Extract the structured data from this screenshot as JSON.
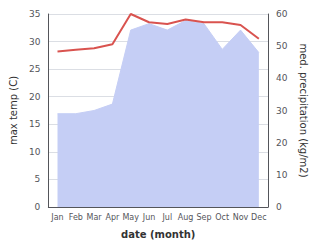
{
  "chart_data": {
    "type": "line",
    "categories": [
      "Jan",
      "Feb",
      "Mar",
      "Apr",
      "May",
      "Jun",
      "Jul",
      "Aug",
      "Sep",
      "Oct",
      "Nov",
      "Dec"
    ],
    "xlabel": "date (month)",
    "ylabel": "max temp (C)",
    "y2label": "med. precipitation (kg/m2)",
    "series": [
      {
        "type": "area",
        "axis": "y2",
        "color": "#c5cef5",
        "values": [
          29,
          29,
          30,
          32,
          55,
          57,
          55,
          58,
          57,
          49,
          55,
          48
        ]
      },
      {
        "type": "line",
        "color": "#d9534f",
        "values": [
          28.2,
          28.5,
          28.8,
          29.5,
          35.0,
          33.5,
          33.2,
          34.0,
          33.5,
          33.5,
          33.0,
          30.5
        ]
      }
    ],
    "ylim": [
      0,
      35
    ],
    "yticks": [
      0,
      5,
      10,
      15,
      20,
      25,
      30,
      35
    ],
    "y2lim": [
      0,
      60
    ],
    "y2ticks": [
      0,
      10,
      20,
      30,
      40,
      50,
      60
    ],
    "grid": true
  }
}
